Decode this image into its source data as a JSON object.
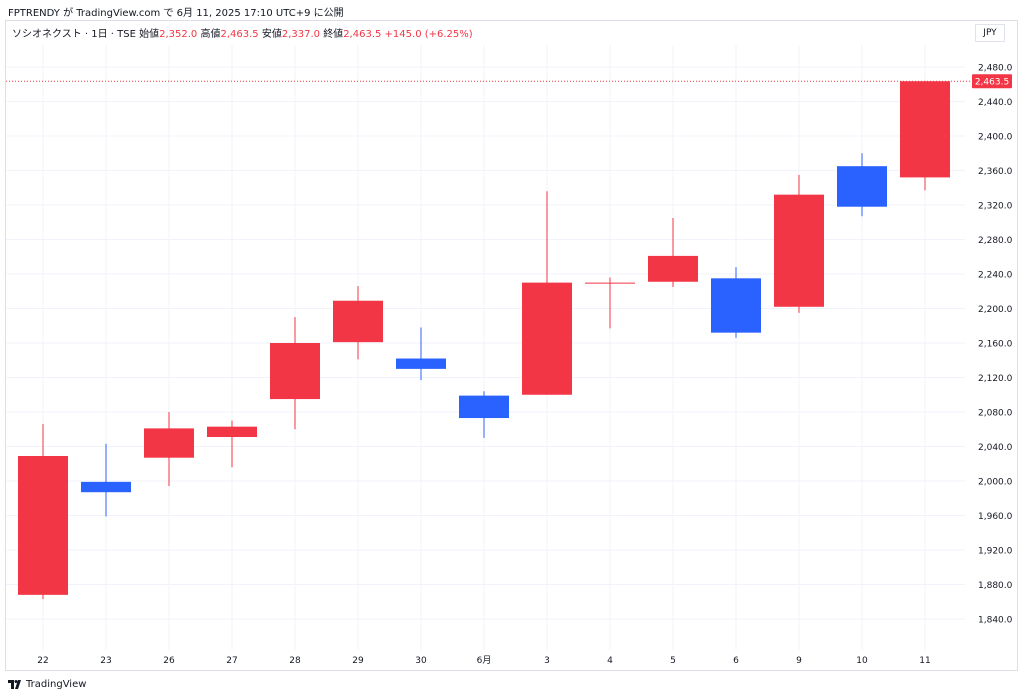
{
  "header": {
    "publish_info": "FPTRENDY が TradingView.com で 6月 11, 2025 17:10 UTC+9 に公開"
  },
  "legend": {
    "symbol": "ソシオネクスト · 1日 · TSE",
    "open_label": "始値",
    "open_value": "2,352.0",
    "high_label": "高値",
    "high_value": "2,463.5",
    "low_label": "安値",
    "low_value": "2,337.0",
    "close_label": "終値",
    "close_value": "2,463.5",
    "change": "+145.0 (+6.25%)"
  },
  "currency_button": "JPY",
  "footer": {
    "brand": "TradingView"
  },
  "colors": {
    "up": "#f23645",
    "down": "#2962ff",
    "grid": "#f0f3fa",
    "text": "#131722"
  },
  "chart_data": {
    "type": "candlestick",
    "categories": [
      "22",
      "23",
      "26",
      "27",
      "28",
      "29",
      "30",
      "6月",
      "3",
      "4",
      "5",
      "6",
      "9",
      "10",
      "11"
    ],
    "ohlc": [
      {
        "open": 1868,
        "high": 2066,
        "low": 1863,
        "close": 2029
      },
      {
        "open": 1999,
        "high": 2043,
        "low": 1959,
        "close": 1987
      },
      {
        "open": 2027,
        "high": 2080,
        "low": 1994,
        "close": 2061
      },
      {
        "open": 2051,
        "high": 2070,
        "low": 2016,
        "close": 2063
      },
      {
        "open": 2095,
        "high": 2190,
        "low": 2060,
        "close": 2160
      },
      {
        "open": 2161,
        "high": 2226,
        "low": 2141,
        "close": 2209
      },
      {
        "open": 2142,
        "high": 2178,
        "low": 2117,
        "close": 2130
      },
      {
        "open": 2099,
        "high": 2104,
        "low": 2050,
        "close": 2073
      },
      {
        "open": 2100,
        "high": 2336,
        "low": 2100,
        "close": 2230
      },
      {
        "open": 2230,
        "high": 2236,
        "low": 2177,
        "close": 2230
      },
      {
        "open": 2231,
        "high": 2305,
        "low": 2225,
        "close": 2261
      },
      {
        "open": 2235,
        "high": 2248,
        "low": 2166,
        "close": 2172
      },
      {
        "open": 2202,
        "high": 2355,
        "low": 2195,
        "close": 2332
      },
      {
        "open": 2365,
        "high": 2380,
        "low": 2307,
        "close": 2318
      },
      {
        "open": 2352,
        "high": 2463.5,
        "low": 2337,
        "close": 2463.5
      }
    ],
    "ylim": [
      1820,
      2490
    ],
    "y_ticks": [
      1840,
      1880,
      1920,
      1960,
      2000,
      2040,
      2080,
      2120,
      2160,
      2200,
      2240,
      2280,
      2320,
      2360,
      2400,
      2440,
      2480
    ],
    "last_price": 2463.5,
    "last_price_label": "2,463.5"
  }
}
